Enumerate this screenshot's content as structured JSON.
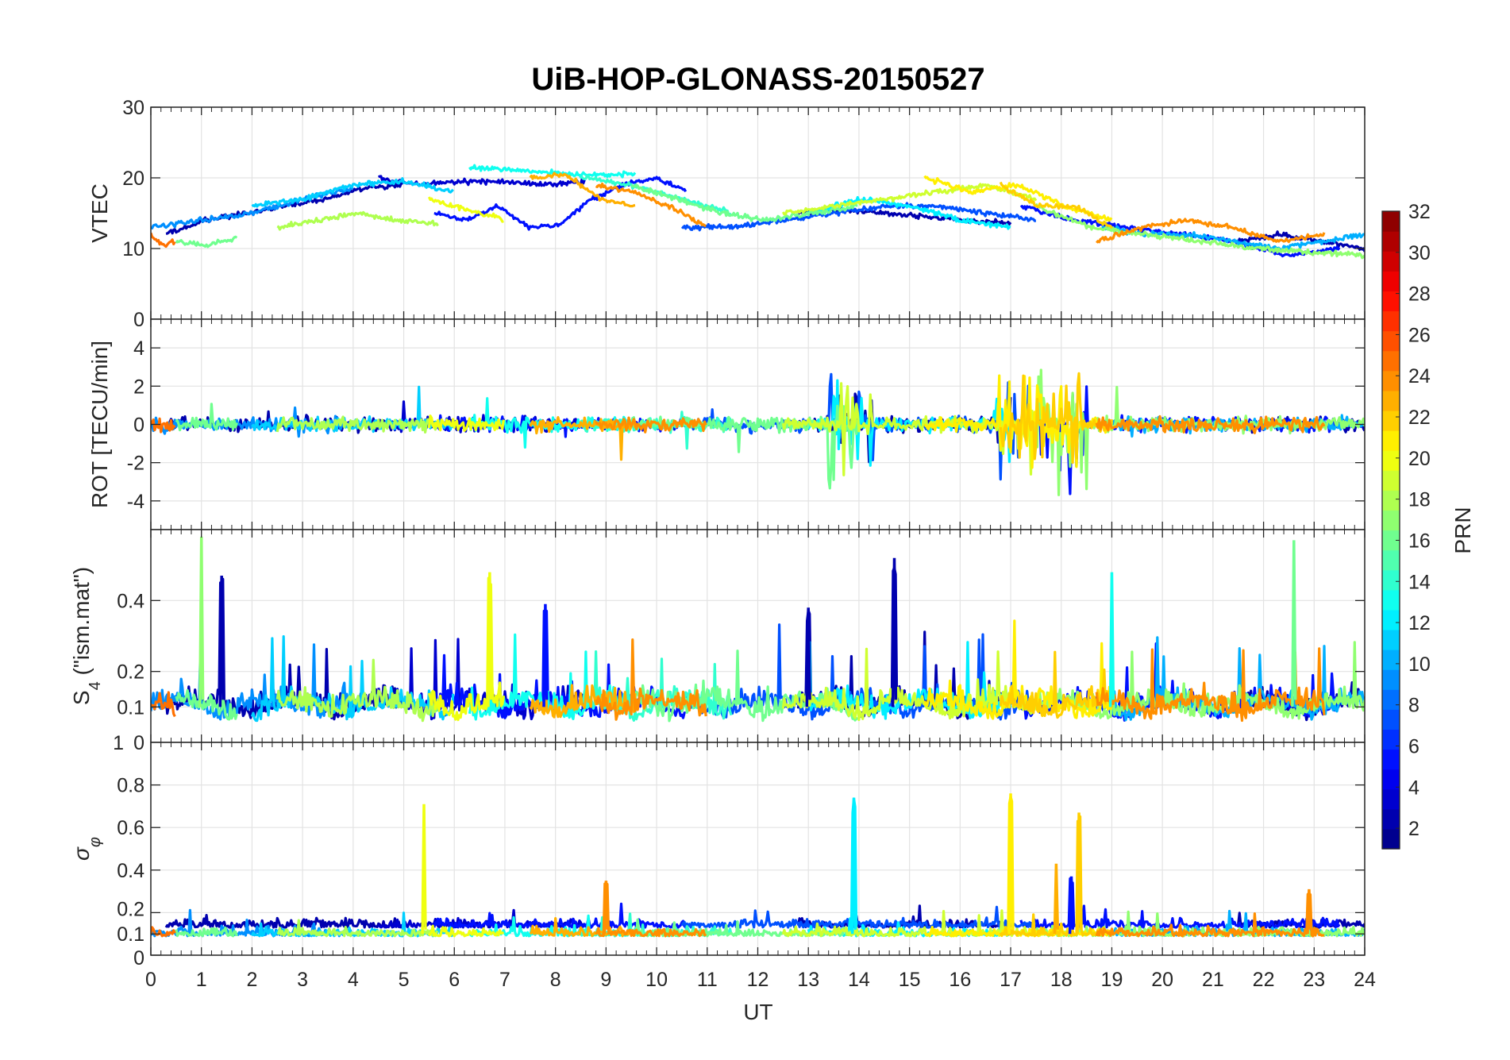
{
  "chart_data": {
    "type": "line",
    "title": "UiB-HOP-GLONASS-20150527",
    "xlabel": "UT",
    "xlim": [
      0,
      24
    ],
    "xticks": [
      "0",
      "1",
      "2",
      "3",
      "4",
      "5",
      "6",
      "7",
      "8",
      "9",
      "10",
      "11",
      "12",
      "13",
      "14",
      "15",
      "16",
      "17",
      "18",
      "19",
      "20",
      "21",
      "22",
      "23",
      "24"
    ],
    "panels": [
      {
        "key": "vtec",
        "ylabel": "VTEC",
        "ylim": [
          0,
          30
        ],
        "yticks": [
          0,
          10,
          20,
          30
        ],
        "ytick_labels": [
          "0",
          "10",
          "20",
          "30"
        ]
      },
      {
        "key": "rot",
        "ylabel": "ROT [TECU/min]",
        "ylim": [
          -5.5,
          5.5
        ],
        "yticks": [
          -4,
          -2,
          0,
          2,
          4
        ],
        "ytick_labels": [
          "-4",
          "-2",
          "0",
          "2",
          "4"
        ]
      },
      {
        "key": "s4",
        "ylabel": "S4 (\"ism.mat\")",
        "ylabel_main": "S",
        "ylabel_sub": "4",
        "ylabel_rest": " (\"ism.mat\")",
        "ylim": [
          0,
          0.6
        ],
        "yticks": [
          0,
          0.1,
          0.2,
          0.4
        ],
        "ytick_labels": [
          "0",
          "0.1",
          "0.2",
          "0.4"
        ],
        "extra_tick_label": "1"
      },
      {
        "key": "sigma",
        "ylabel": "σφ",
        "ylabel_main": "σ",
        "ylabel_sub": "φ",
        "ylim": [
          0,
          1
        ],
        "yticks": [
          0,
          0.1,
          0.2,
          0.4,
          0.6,
          0.8
        ],
        "ytick_labels": [
          "0",
          "0.1",
          "0.2",
          "0.4",
          "0.6",
          "0.8"
        ]
      }
    ],
    "colorbar": {
      "label": "PRN",
      "clim": [
        1,
        32
      ],
      "colormap": "jet",
      "levels": 32,
      "tick_labels": [
        "2",
        "4",
        "6",
        "8",
        "10",
        "12",
        "14",
        "16",
        "18",
        "20",
        "22",
        "24",
        "26",
        "28",
        "30",
        "32"
      ]
    },
    "series": [
      {
        "prn": 2,
        "start": 0.3,
        "end": 5.0,
        "vtec": [
          12,
          14,
          15,
          16,
          17,
          18.5,
          19
        ]
      },
      {
        "prn": 2,
        "start": 12.8,
        "end": 17.0,
        "vtec": [
          15,
          15.5,
          15,
          14.5,
          14,
          13.5
        ]
      },
      {
        "prn": 2,
        "start": 21.5,
        "end": 24,
        "vtec": [
          11,
          12,
          11,
          10
        ]
      },
      {
        "prn": 3,
        "start": 4.5,
        "end": 8.6,
        "vtec": [
          20,
          19,
          19.5,
          19.5,
          19,
          19.5
        ]
      },
      {
        "prn": 5,
        "start": 5.6,
        "end": 10.6,
        "vtec": [
          15,
          14,
          16,
          13,
          13.5,
          17,
          19,
          20,
          18
        ]
      },
      {
        "prn": 5,
        "start": 17.2,
        "end": 23.5,
        "vtec": [
          16,
          14,
          13,
          12,
          11,
          9,
          10
        ]
      },
      {
        "prn": 7,
        "start": 10.5,
        "end": 17.5,
        "vtec": [
          13,
          13,
          14,
          15,
          16,
          16,
          15,
          14
        ]
      },
      {
        "prn": 9,
        "start": 0.0,
        "end": 4.0,
        "vtec": [
          13,
          14,
          15,
          17,
          18.5
        ]
      },
      {
        "prn": 10,
        "start": 18.8,
        "end": 24,
        "vtec": [
          13,
          12,
          12,
          11,
          10,
          11,
          12
        ]
      },
      {
        "prn": 11,
        "start": 2.0,
        "end": 6.0,
        "vtec": [
          16,
          17,
          19,
          19.5,
          18
        ]
      },
      {
        "prn": 12,
        "start": 13.0,
        "end": 17.0,
        "vtec": [
          15,
          17,
          16,
          14,
          13
        ]
      },
      {
        "prn": 13,
        "start": 6.3,
        "end": 9.6,
        "vtec": [
          21.5,
          21,
          20.5,
          20.5
        ]
      },
      {
        "prn": 14,
        "start": 8.5,
        "end": 11.5,
        "vtec": [
          20,
          19,
          17,
          15
        ]
      },
      {
        "prn": 16,
        "start": 0.5,
        "end": 1.7,
        "vtec": [
          11,
          10.5,
          11.5
        ]
      },
      {
        "prn": 16,
        "start": 9.5,
        "end": 14.0,
        "vtec": [
          19,
          17,
          15,
          14,
          15,
          16
        ]
      },
      {
        "prn": 17,
        "start": 17.5,
        "end": 24,
        "vtec": [
          16,
          13,
          12,
          11,
          10,
          9.5,
          9
        ]
      },
      {
        "prn": 18,
        "start": 2.5,
        "end": 5.7,
        "vtec": [
          13,
          14,
          15,
          14,
          13.5
        ]
      },
      {
        "prn": 19,
        "start": 12.5,
        "end": 17.5,
        "vtec": [
          15,
          16,
          17,
          18,
          19,
          17
        ]
      },
      {
        "prn": 20,
        "start": 5.5,
        "end": 7.0,
        "vtec": [
          17,
          16,
          15,
          14
        ]
      },
      {
        "prn": 21,
        "start": 15.3,
        "end": 19.0,
        "vtec": [
          20,
          18,
          19,
          16,
          14
        ]
      },
      {
        "prn": 22,
        "start": 16.8,
        "end": 19.0,
        "vtec": [
          19,
          16,
          16,
          13
        ]
      },
      {
        "prn": 23,
        "start": 7.5,
        "end": 9.6,
        "vtec": [
          20,
          20.5,
          17,
          16
        ]
      },
      {
        "prn": 24,
        "start": 8.8,
        "end": 11.0,
        "vtec": [
          19,
          18,
          16,
          13
        ]
      },
      {
        "prn": 24,
        "start": 18.7,
        "end": 23.2,
        "vtec": [
          11,
          13,
          14,
          13,
          11,
          12
        ]
      },
      {
        "prn": 25,
        "start": 0.0,
        "end": 0.5,
        "vtec": [
          12,
          10.5,
          11
        ]
      }
    ],
    "s4_peaks": [
      {
        "prn": 17,
        "ut": 1.0,
        "value": 0.58
      },
      {
        "prn": 2,
        "ut": 1.4,
        "value": 0.47
      },
      {
        "prn": 20,
        "ut": 6.7,
        "value": 0.48
      },
      {
        "prn": 2,
        "ut": 14.7,
        "value": 0.52
      },
      {
        "prn": 16,
        "ut": 22.6,
        "value": 0.57
      },
      {
        "prn": 13,
        "ut": 19.0,
        "value": 0.48
      },
      {
        "prn": 5,
        "ut": 7.8,
        "value": 0.39
      },
      {
        "prn": 2,
        "ut": 13.0,
        "value": 0.38
      }
    ],
    "sigma_peaks": [
      {
        "prn": 20,
        "ut": 5.4,
        "value": 0.71
      },
      {
        "prn": 12,
        "ut": 13.9,
        "value": 0.74
      },
      {
        "prn": 21,
        "ut": 17.0,
        "value": 0.76
      },
      {
        "prn": 22,
        "ut": 18.35,
        "value": 0.67
      },
      {
        "prn": 23,
        "ut": 17.9,
        "value": 0.43
      },
      {
        "prn": 5,
        "ut": 18.2,
        "value": 0.37
      },
      {
        "prn": 24,
        "ut": 9.0,
        "value": 0.35
      },
      {
        "prn": 24,
        "ut": 22.9,
        "value": 0.31
      }
    ],
    "rot_bursts": [
      {
        "ut_start": 13.4,
        "ut_end": 14.3,
        "amplitude": 4.1
      },
      {
        "ut_start": 16.7,
        "ut_end": 18.5,
        "amplitude": 4.1
      }
    ]
  }
}
